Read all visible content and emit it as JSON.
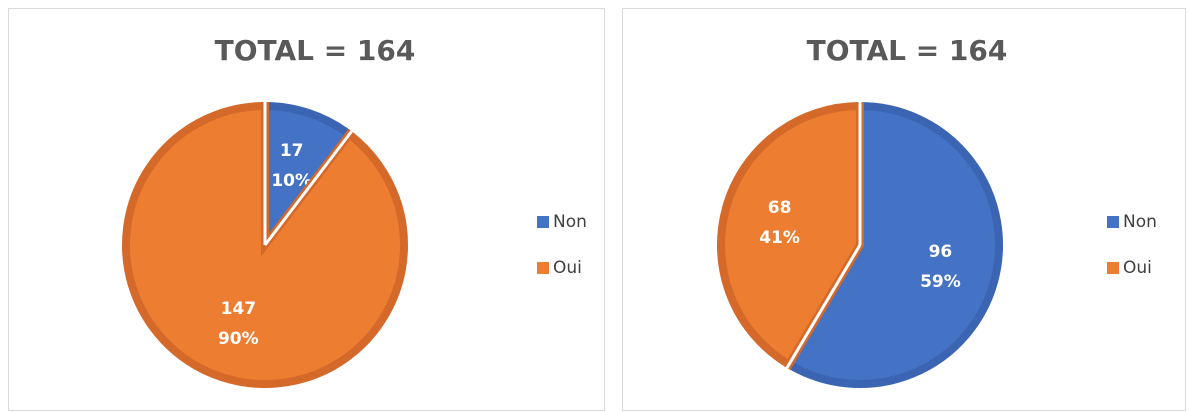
{
  "chart_data": [
    {
      "type": "pie",
      "title": "TOTAL = 164",
      "categories": [
        "Non",
        "Oui"
      ],
      "values": [
        17,
        147
      ],
      "percent_labels": [
        "10%",
        "90%"
      ],
      "colors": [
        "#4472c4",
        "#ed7d31"
      ],
      "legend": "right"
    },
    {
      "type": "pie",
      "title": "TOTAL = 164",
      "categories": [
        "Non",
        "Oui"
      ],
      "values": [
        96,
        68
      ],
      "percent_labels": [
        "59%",
        "41%"
      ],
      "colors": [
        "#4472c4",
        "#ed7d31"
      ],
      "legend": "right"
    }
  ]
}
